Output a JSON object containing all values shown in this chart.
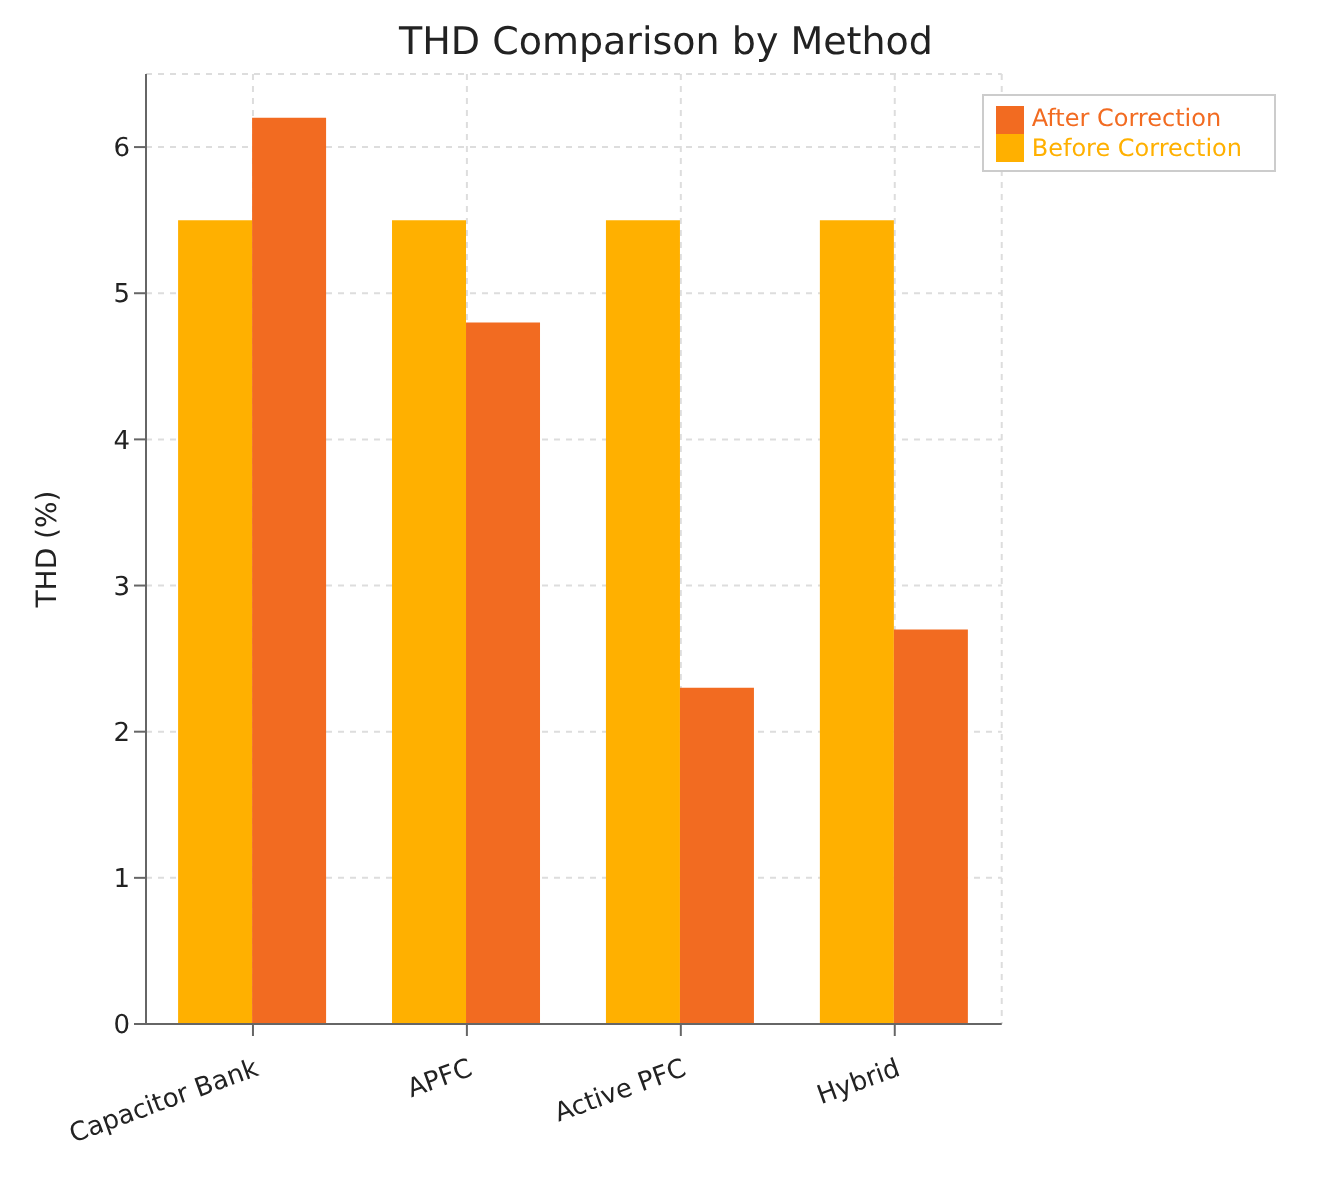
{
  "chart_data": {
    "type": "bar",
    "title": "THD Comparison by Method",
    "ylabel": "THD (%)",
    "categories": [
      "Capacitor Bank",
      "APFC",
      "Active PFC",
      "Hybrid"
    ],
    "series": [
      {
        "name": "Before Correction",
        "color": "#ffb000",
        "values": [
          5.5,
          5.5,
          5.5,
          5.5
        ]
      },
      {
        "name": "After Correction",
        "color": "#f26b21",
        "values": [
          6.2,
          4.8,
          2.3,
          2.7
        ]
      }
    ],
    "ylim": [
      0,
      6.5
    ],
    "yticks": [
      0,
      1,
      2,
      3,
      4,
      5,
      6
    ],
    "grid": true,
    "legend": "top right"
  }
}
